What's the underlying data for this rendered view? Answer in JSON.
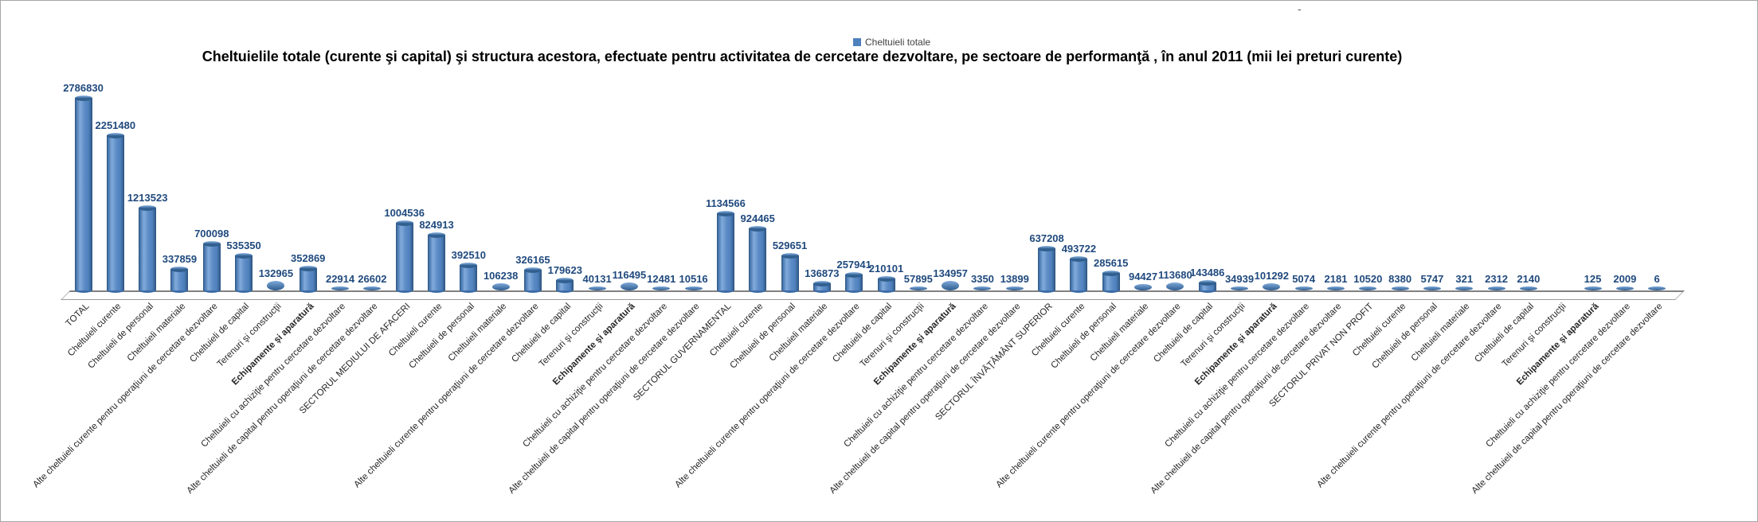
{
  "frame": {
    "background": "#ffffff",
    "border_color": "#a6a6a6",
    "stray_mark": "-"
  },
  "legend": {
    "swatch_color": "#4f81bd",
    "label": "Cheltuieli totale",
    "position": "top-center"
  },
  "title": {
    "text": "Cheltuielile totale (curente şi capital) şi structura acestora, efectuate pentru activitatea de cercetare dezvoltare, pe sectoare de performanţă , în anul 2011 (mii lei preturi curente)"
  },
  "chart_data": {
    "type": "bar",
    "style": "3d-cylinder",
    "title": "Cheltuielile totale (curente şi capital) şi structura acestora, efectuate pentru activitatea de cercetare dezvoltare, pe sectoare de performanţă , în anul 2011 (mii lei preturi curente)",
    "xlabel": "",
    "ylabel": "",
    "y_axis_visible": false,
    "grid": false,
    "legend_position": "top-center",
    "data_labels_visible": true,
    "bar_color": "#4f81bd",
    "data_label_color": "#1f497d",
    "emphasized_categories": [
      "Echipamente şi aparatură"
    ],
    "categories": [
      "TOTAL",
      "Cheltuieli curente",
      "Cheltuieli de personal",
      "Cheltuieli materiale",
      "Alte cheltuieli curente pentru operaţiuni de cercetare dezvoltare",
      "Cheltuieli de capital",
      "Terenuri şi construcţii",
      "Echipamente şi aparatură",
      "Cheltuieli cu achiziţie pentru cercetare dezvoltare",
      "Alte cheltuieli de capital pentru operaţiuni de cercetare dezvoltare",
      "SECTORUL MEDIULUI DE AFACERI",
      "Cheltuieli curente",
      "Cheltuieli de personal",
      "Cheltuieli materiale",
      "Alte cheltuieli curente pentru operaţiuni de cercetare dezvoltare",
      "Cheltuieli de capital",
      "Terenuri şi construcţii",
      "Echipamente şi aparatură",
      "Cheltuieli cu achiziţie pentru cercetare dezvoltare",
      "Alte cheltuieli de capital pentru operaţiuni de cercetare dezvoltare",
      "SECTORUL GUVERNAMENTAL",
      "Cheltuieli curente",
      "Cheltuieli de personal",
      "Cheltuieli materiale",
      "Alte cheltuieli curente pentru operaţiuni de cercetare dezvoltare",
      "Cheltuieli de capital",
      "Terenuri şi construcţii",
      "Echipamente şi aparatură",
      "Cheltuieli cu achiziţie pentru cercetare dezvoltare",
      "Alte cheltuieli de capital pentru operaţiuni de cercetare dezvoltare",
      "SECTORUL ÎNVĂŢĂMÂNT SUPERIOR",
      "Cheltuieli curente",
      "Cheltuieli de personal",
      "Cheltuieli materiale",
      "Alte cheltuieli curente pentru operaţiuni de cercetare dezvoltare",
      "Cheltuieli de capital",
      "Terenuri şi construcţii",
      "Echipamente şi aparatură",
      "Cheltuieli cu achiziţie pentru cercetare dezvoltare",
      "Alte cheltuieli de capital pentru operaţiuni de cercetare dezvoltare",
      "SECTORUL PRIVAT NON PROFIT",
      "Cheltuieli curente",
      "Cheltuieli de personal",
      "Cheltuieli materiale",
      "Alte cheltuieli curente pentru operaţiuni de cercetare dezvoltare",
      "Cheltuieli de capital",
      "Terenuri şi construcţii",
      "Echipamente şi aparatură",
      "Cheltuieli cu achiziţie pentru cercetare dezvoltare",
      "Alte cheltuieli de capital pentru operaţiuni de cercetare dezvoltare"
    ],
    "series": [
      {
        "name": "Cheltuieli totale",
        "values": [
          2786830,
          2251480,
          1213523,
          337859,
          700098,
          535350,
          132965,
          352869,
          22914,
          26602,
          1004536,
          824913,
          392510,
          106238,
          326165,
          179623,
          40131,
          116495,
          12481,
          10516,
          1134566,
          924465,
          529651,
          136873,
          257941,
          210101,
          57895,
          134957,
          3350,
          13899,
          637208,
          493722,
          285615,
          94427,
          113680,
          143486,
          34939,
          101292,
          5074,
          2181,
          10520,
          8380,
          5747,
          321,
          2312,
          2140,
          null,
          125,
          2009,
          6
        ]
      }
    ]
  }
}
